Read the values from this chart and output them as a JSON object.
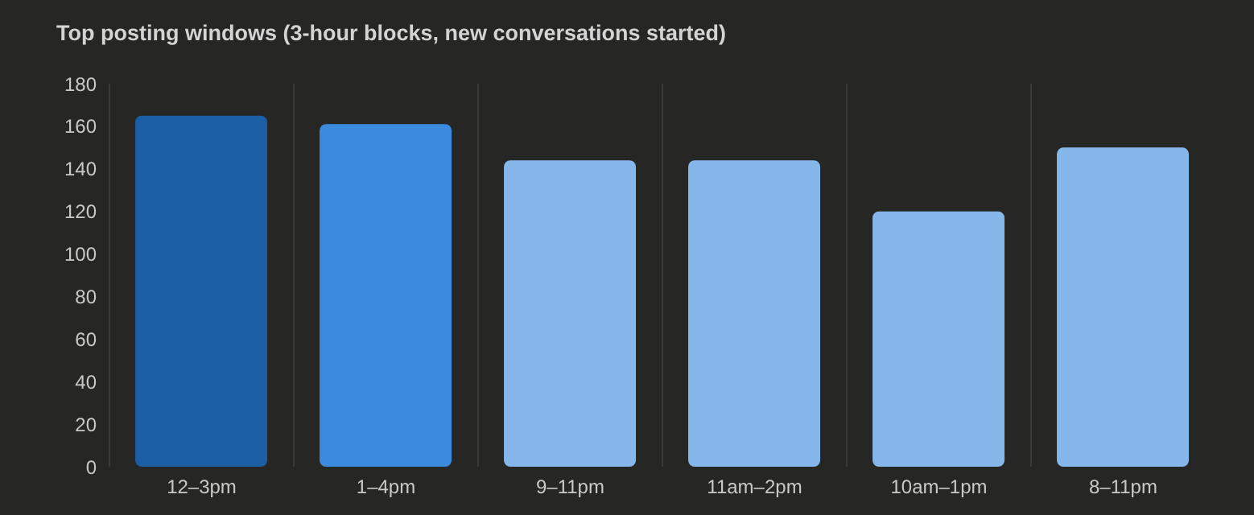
{
  "chart_data": {
    "type": "bar",
    "title": "Top posting windows (3-hour blocks, new conversations started)",
    "categories": [
      "12–3pm",
      "1–4pm",
      "9–11pm",
      "11am–2pm",
      "10am–1pm",
      "8–11pm"
    ],
    "values": [
      165,
      161,
      144,
      144,
      120,
      150
    ],
    "colors": [
      "#1b5ea4",
      "#3a8ade",
      "#86b7ea",
      "#86b7ea",
      "#86b7ea",
      "#86b7ea"
    ],
    "ylim": [
      0,
      180
    ],
    "yticks": [
      0,
      20,
      40,
      60,
      80,
      100,
      120,
      140,
      160,
      180
    ],
    "grid": "x"
  }
}
